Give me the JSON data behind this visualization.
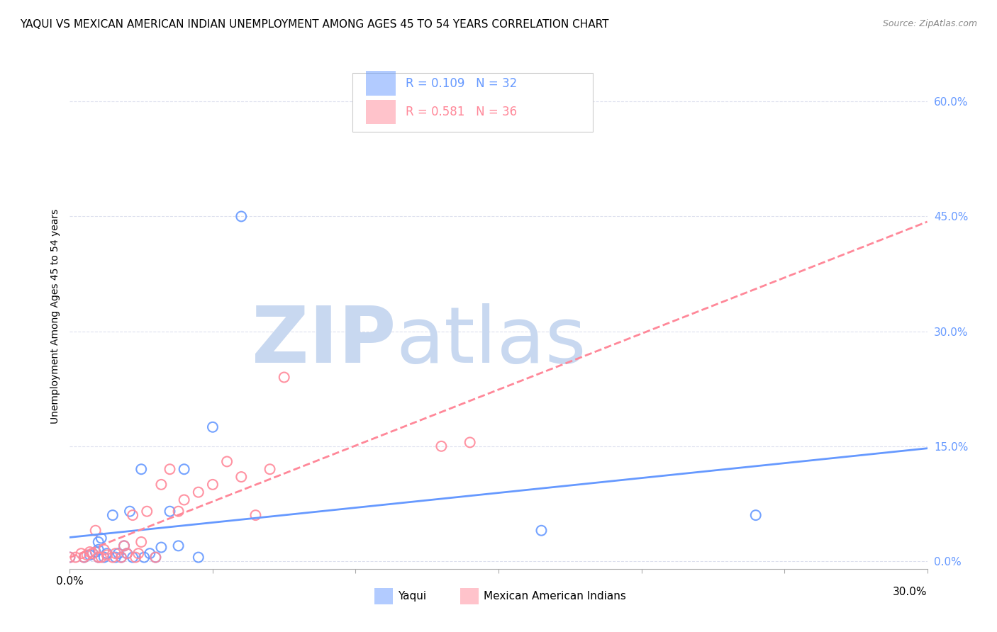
{
  "title": "YAQUI VS MEXICAN AMERICAN INDIAN UNEMPLOYMENT AMONG AGES 45 TO 54 YEARS CORRELATION CHART",
  "source": "Source: ZipAtlas.com",
  "ylabel": "Unemployment Among Ages 45 to 54 years",
  "ytick_labels": [
    "0.0%",
    "15.0%",
    "30.0%",
    "45.0%",
    "60.0%"
  ],
  "ytick_values": [
    0.0,
    0.15,
    0.3,
    0.45,
    0.6
  ],
  "xlim": [
    0.0,
    0.3
  ],
  "ylim": [
    -0.01,
    0.65
  ],
  "r_yaqui": "R = 0.109",
  "n_yaqui": "N = 32",
  "r_mexican": "R = 0.581",
  "n_mexican": "N = 36",
  "yaqui_color": "#6699ff",
  "mexican_color": "#ff8899",
  "watermark_zip_color": "#c8d8f0",
  "watermark_atlas_color": "#c8d8f0",
  "yaqui_scatter_x": [
    0.0,
    0.005,
    0.007,
    0.008,
    0.009,
    0.01,
    0.01,
    0.01,
    0.011,
    0.012,
    0.013,
    0.015,
    0.016,
    0.017,
    0.018,
    0.019,
    0.02,
    0.021,
    0.022,
    0.025,
    0.026,
    0.028,
    0.03,
    0.032,
    0.035,
    0.038,
    0.04,
    0.045,
    0.05,
    0.06,
    0.165,
    0.24
  ],
  "yaqui_scatter_y": [
    0.005,
    0.005,
    0.008,
    0.01,
    0.012,
    0.005,
    0.015,
    0.025,
    0.03,
    0.005,
    0.01,
    0.06,
    0.005,
    0.01,
    0.005,
    0.02,
    0.01,
    0.065,
    0.005,
    0.12,
    0.005,
    0.01,
    0.005,
    0.018,
    0.065,
    0.02,
    0.12,
    0.005,
    0.175,
    0.45,
    0.04,
    0.06
  ],
  "mexican_scatter_x": [
    0.0,
    0.002,
    0.004,
    0.005,
    0.006,
    0.007,
    0.008,
    0.009,
    0.01,
    0.011,
    0.012,
    0.013,
    0.015,
    0.016,
    0.018,
    0.019,
    0.02,
    0.022,
    0.023,
    0.024,
    0.025,
    0.027,
    0.03,
    0.032,
    0.035,
    0.038,
    0.04,
    0.045,
    0.05,
    0.055,
    0.06,
    0.065,
    0.07,
    0.075,
    0.13,
    0.14
  ],
  "mexican_scatter_y": [
    0.005,
    0.005,
    0.01,
    0.005,
    0.008,
    0.012,
    0.01,
    0.04,
    0.005,
    0.005,
    0.015,
    0.008,
    0.005,
    0.01,
    0.005,
    0.02,
    0.01,
    0.06,
    0.005,
    0.01,
    0.025,
    0.065,
    0.005,
    0.1,
    0.12,
    0.065,
    0.08,
    0.09,
    0.1,
    0.13,
    0.11,
    0.06,
    0.12,
    0.24,
    0.15,
    0.155
  ],
  "background_color": "#ffffff",
  "grid_color": "#dde0ee",
  "title_fontsize": 11,
  "axis_label_fontsize": 10,
  "tick_fontsize": 11,
  "legend_fontsize": 12
}
